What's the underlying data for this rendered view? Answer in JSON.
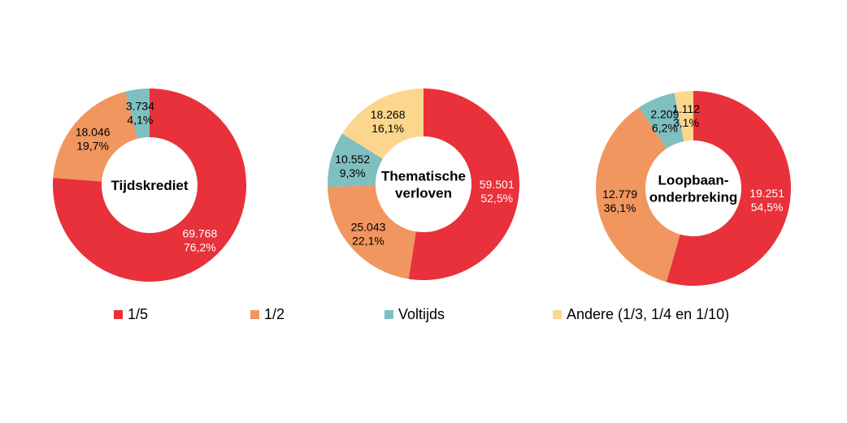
{
  "chart_data": [
    {
      "type": "pie",
      "title": "Tijdskrediet",
      "categories": [
        "1/5",
        "1/2",
        "Voltijds",
        "Andere (1/3, 1/4 en 1/10)"
      ],
      "values": [
        69768,
        18046,
        3734,
        0
      ],
      "value_labels": [
        "69.768",
        "18.046",
        "3.734",
        ""
      ],
      "percent_labels": [
        "76,2%",
        "19,7%",
        "4,1%",
        ""
      ]
    },
    {
      "type": "pie",
      "title": "Thematische verloven",
      "categories": [
        "1/5",
        "1/2",
        "Voltijds",
        "Andere (1/3, 1/4 en 1/10)"
      ],
      "values": [
        59501,
        25043,
        10552,
        18268
      ],
      "value_labels": [
        "59.501",
        "25.043",
        "10.552",
        "18.268"
      ],
      "percent_labels": [
        "52,5%",
        "22,1%",
        "9,3%",
        "16,1%"
      ]
    },
    {
      "type": "pie",
      "title": "Loopbaan-onderbreking",
      "categories": [
        "1/5",
        "1/2",
        "Voltijds",
        "Andere (1/3, 1/4 en 1/10)"
      ],
      "values": [
        19251,
        12779,
        2209,
        1112
      ],
      "value_labels": [
        "19.251",
        "12.779",
        "2.209",
        "1.112"
      ],
      "percent_labels": [
        "54,5%",
        "36,1%",
        "6,2%",
        "3,1%"
      ]
    }
  ],
  "center_titles": [
    [
      "Tijdskrediet"
    ],
    [
      "Thematische",
      "verloven"
    ],
    [
      "Loopbaan-",
      "onderbreking"
    ]
  ],
  "legend": {
    "position": "bottom",
    "items": [
      {
        "label": "1/5",
        "color": "#E8313A"
      },
      {
        "label": "1/2",
        "color": "#F0965E"
      },
      {
        "label": "Voltijds",
        "color": "#7FBFBF"
      },
      {
        "label": "Andere (1/3, 1/4 en 1/10)",
        "color": "#FDD68E"
      }
    ]
  }
}
